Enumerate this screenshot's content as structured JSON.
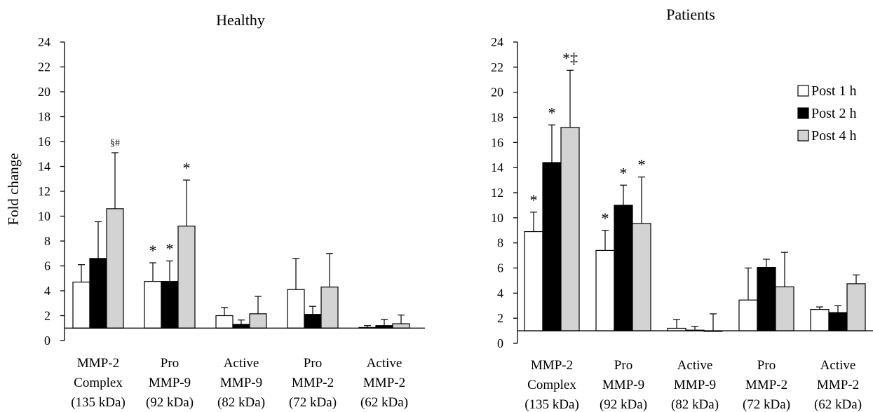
{
  "chart_data": [
    {
      "type": "bar",
      "title": "Healthy",
      "ylabel": "Fold change",
      "ylim": [
        0,
        24
      ],
      "yticks": [
        0,
        2,
        4,
        6,
        8,
        10,
        12,
        14,
        16,
        18,
        20,
        22,
        24
      ],
      "baseline": 1,
      "categories": [
        [
          "MMP-2",
          "Complex",
          "(135 kDa)"
        ],
        [
          "Pro",
          "MMP-9",
          "(92 kDa)"
        ],
        [
          "Active",
          "MMP-9",
          "(82 kDa)"
        ],
        [
          "Pro",
          "MMP-2",
          "(72 kDa)"
        ],
        [
          "Active",
          "MMP-2",
          "(62 kDa)"
        ]
      ],
      "series": [
        {
          "values": [
            4.7,
            4.75,
            2.0,
            4.1,
            1.05
          ],
          "errors": [
            1.4,
            1.5,
            0.65,
            2.5,
            0.15
          ],
          "color": "#ffffff"
        },
        {
          "values": [
            6.6,
            4.75,
            1.3,
            2.1,
            1.2
          ],
          "errors": [
            2.95,
            1.65,
            0.35,
            0.65,
            0.5
          ],
          "color": "#000000"
        },
        {
          "values": [
            10.6,
            9.2,
            2.15,
            4.3,
            1.35
          ],
          "errors": [
            4.5,
            3.7,
            1.4,
            2.7,
            0.7
          ],
          "color": "#d3d3d3"
        }
      ],
      "annotations": [
        {
          "category": 0,
          "series": 2,
          "text": "§#"
        },
        {
          "category": 1,
          "series": 0,
          "text": "*"
        },
        {
          "category": 1,
          "series": 1,
          "text": "*"
        },
        {
          "category": 1,
          "series": 2,
          "text": "*"
        }
      ]
    },
    {
      "type": "bar",
      "title": "Patients",
      "ylabel": "",
      "ylim": [
        0,
        24
      ],
      "yticks": [
        0,
        2,
        4,
        6,
        8,
        10,
        12,
        14,
        16,
        18,
        20,
        22,
        24
      ],
      "baseline": 1,
      "categories": [
        [
          "MMP-2",
          "Complex",
          "(135 kDa)"
        ],
        [
          "Pro",
          "MMP-9",
          "(92 kDa)"
        ],
        [
          "Active",
          "MMP-9",
          "(82 kDa)"
        ],
        [
          "Pro",
          "MMP-2",
          "(72 kDa)"
        ],
        [
          "Active",
          "MMP-2",
          "(62 kDa)"
        ]
      ],
      "series": [
        {
          "name": "Post 1 h",
          "values": [
            8.9,
            7.4,
            1.2,
            3.45,
            2.7
          ],
          "errors": [
            1.55,
            1.6,
            0.7,
            2.55,
            0.2
          ],
          "color": "#ffffff"
        },
        {
          "name": "Post 2 h",
          "values": [
            14.4,
            11.0,
            1.05,
            6.05,
            2.45
          ],
          "errors": [
            3.0,
            1.6,
            0.3,
            0.65,
            0.55
          ],
          "color": "#000000"
        },
        {
          "name": "Post 4 h",
          "values": [
            17.2,
            9.55,
            0.95,
            4.5,
            4.75
          ],
          "errors": [
            4.55,
            3.7,
            1.4,
            2.75,
            0.7
          ],
          "color": "#d3d3d3"
        }
      ],
      "legend": "right",
      "annotations": [
        {
          "category": 0,
          "series": 0,
          "text": "*"
        },
        {
          "category": 0,
          "series": 1,
          "text": "*"
        },
        {
          "category": 0,
          "series": 2,
          "text": "*‡"
        },
        {
          "category": 1,
          "series": 0,
          "text": "*"
        },
        {
          "category": 1,
          "series": 1,
          "text": "*"
        },
        {
          "category": 1,
          "series": 2,
          "text": "*"
        }
      ]
    }
  ]
}
